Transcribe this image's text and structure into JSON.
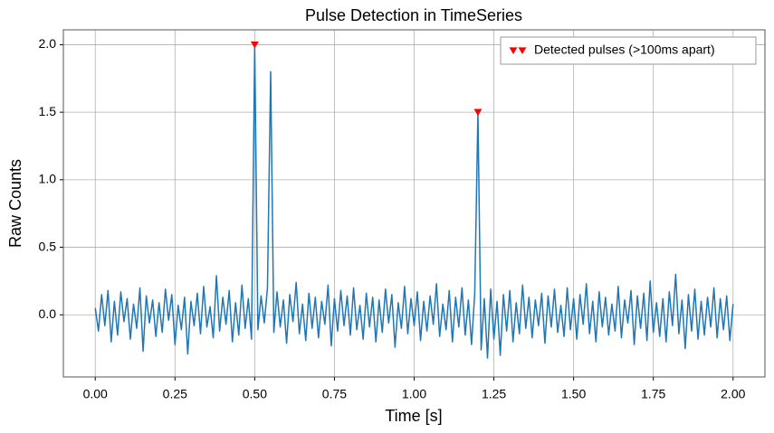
{
  "chart_data": {
    "type": "line",
    "title": "Pulse Detection in TimeSeries",
    "xlabel": "Time [s]",
    "ylabel": "Raw Counts",
    "xlim": [
      -0.1,
      2.1
    ],
    "ylim": [
      -0.46,
      2.11
    ],
    "grid": true,
    "legend": "upper right",
    "xticks": [
      {
        "value": 0,
        "label": "0.00"
      },
      0.25,
      {
        "value": 0.5,
        "label": "0.50"
      },
      0.75,
      {
        "value": 1,
        "label": "1.00"
      },
      1.25,
      {
        "value": 1.5,
        "label": "1.50"
      },
      1.75,
      {
        "value": 2,
        "label": "2.00"
      }
    ],
    "yticks": [
      {
        "value": 0,
        "label": "0.0"
      },
      0.5,
      {
        "value": 1,
        "label": "1.0"
      },
      1.5,
      {
        "value": 2,
        "label": "2.0"
      }
    ],
    "x": [
      0,
      0.01,
      0.02,
      0.03,
      0.04,
      0.05,
      0.06,
      0.07,
      0.08,
      0.09,
      0.1,
      0.11,
      0.12,
      0.13,
      0.14,
      0.15,
      0.16,
      0.17,
      0.18,
      0.19,
      0.2,
      0.21,
      0.22,
      0.23,
      0.24,
      0.25,
      0.26,
      0.27,
      0.28,
      0.29,
      0.3,
      0.31,
      0.32,
      0.33,
      0.34,
      0.35,
      0.36,
      0.37,
      0.38,
      0.39,
      0.4,
      0.41,
      0.42,
      0.43,
      0.44,
      0.45,
      0.46,
      0.47,
      0.48,
      0.49,
      0.5,
      0.51,
      0.52,
      0.53,
      0.54,
      0.55,
      0.56,
      0.57,
      0.58,
      0.59,
      0.6,
      0.61,
      0.62,
      0.63,
      0.64,
      0.65,
      0.66,
      0.67,
      0.68,
      0.69,
      0.7,
      0.71,
      0.72,
      0.73,
      0.74,
      0.75,
      0.76,
      0.77,
      0.78,
      0.79,
      0.8,
      0.81,
      0.82,
      0.83,
      0.84,
      0.85,
      0.86,
      0.87,
      0.88,
      0.89,
      0.9,
      0.91,
      0.92,
      0.93,
      0.94,
      0.95,
      0.96,
      0.97,
      0.98,
      0.99,
      1,
      1.01,
      1.02,
      1.03,
      1.04,
      1.05,
      1.06,
      1.07,
      1.08,
      1.09,
      1.1,
      1.11,
      1.12,
      1.13,
      1.14,
      1.15,
      1.16,
      1.17,
      1.18,
      1.19,
      1.2,
      1.21,
      1.22,
      1.23,
      1.24,
      1.25,
      1.26,
      1.27,
      1.28,
      1.29,
      1.3,
      1.31,
      1.32,
      1.33,
      1.34,
      1.35,
      1.36,
      1.37,
      1.38,
      1.39,
      1.4,
      1.41,
      1.42,
      1.43,
      1.44,
      1.45,
      1.46,
      1.47,
      1.48,
      1.49,
      1.5,
      1.51,
      1.52,
      1.53,
      1.54,
      1.55,
      1.56,
      1.57,
      1.58,
      1.59,
      1.6,
      1.61,
      1.62,
      1.63,
      1.64,
      1.65,
      1.66,
      1.67,
      1.68,
      1.69,
      1.7,
      1.71,
      1.72,
      1.73,
      1.74,
      1.75,
      1.76,
      1.77,
      1.78,
      1.79,
      1.8,
      1.81,
      1.82,
      1.83,
      1.84,
      1.85,
      1.86,
      1.87,
      1.88,
      1.89,
      1.9,
      1.91,
      1.92,
      1.93,
      1.94,
      1.95,
      1.96,
      1.97,
      1.98,
      1.99,
      2
    ],
    "series": [
      {
        "type": "line",
        "color": "#1f77b4",
        "values": [
          0.05,
          -0.12,
          0.15,
          -0.08,
          0.18,
          -0.2,
          0.1,
          -0.15,
          0.17,
          -0.05,
          0.12,
          -0.18,
          0.08,
          -0.1,
          0.2,
          -0.27,
          0.14,
          -0.06,
          0.11,
          -0.16,
          0.09,
          -0.13,
          0.19,
          -0.04,
          0.15,
          -0.22,
          0.07,
          -0.11,
          0.13,
          -0.29,
          0.1,
          -0.08,
          0.16,
          -0.14,
          0.21,
          -0.09,
          0.06,
          -0.17,
          0.29,
          -0.12,
          0.13,
          -0.07,
          0.18,
          -0.2,
          0.09,
          -0.15,
          0.22,
          -0.1,
          0.12,
          -0.18,
          2.0,
          -0.11,
          0.14,
          -0.06,
          0.2,
          1.8,
          -0.13,
          0.17,
          -0.09,
          0.11,
          -0.21,
          0.15,
          -0.05,
          0.24,
          -0.14,
          0.08,
          -0.19,
          0.16,
          -0.1,
          0.13,
          -0.17,
          0.1,
          -0.07,
          0.22,
          -0.23,
          0.12,
          -0.12,
          0.18,
          -0.08,
          0.14,
          -0.15,
          0.2,
          -0.11,
          0.07,
          -0.18,
          0.16,
          -0.09,
          0.13,
          -0.2,
          0.11,
          -0.13,
          0.19,
          -0.06,
          0.15,
          -0.24,
          0.09,
          -0.1,
          0.21,
          -0.14,
          0.12,
          -0.08,
          0.17,
          -0.19,
          0.1,
          -0.12,
          0.14,
          -0.07,
          0.23,
          -0.16,
          0.08,
          -0.11,
          0.18,
          -0.2,
          0.13,
          -0.09,
          0.2,
          -0.15,
          0.11,
          -0.22,
          0.16,
          1.5,
          -0.26,
          0.12,
          -0.32,
          0.19,
          -0.18,
          0.1,
          -0.3,
          0.15,
          -0.12,
          0.18,
          -0.2,
          0.09,
          -0.14,
          0.22,
          -0.1,
          0.13,
          -0.17,
          0.11,
          -0.08,
          0.16,
          -0.21,
          0.14,
          -0.09,
          0.19,
          -0.13,
          0.07,
          -0.16,
          0.2,
          -0.11,
          0.12,
          -0.18,
          0.15,
          -0.07,
          0.23,
          -0.14,
          0.1,
          -0.2,
          0.17,
          -0.09,
          0.13,
          -0.15,
          0.08,
          -0.12,
          0.21,
          -0.17,
          0.11,
          -0.06,
          0.18,
          -0.22,
          0.14,
          -0.1,
          0.16,
          -0.19,
          0.25,
          -0.13,
          0.09,
          -0.16,
          0.12,
          -0.2,
          0.17,
          -0.08,
          0.3,
          -0.14,
          0.11,
          -0.25,
          0.15,
          -0.12,
          0.19,
          -0.18,
          0.1,
          -0.15,
          0.13,
          -0.09,
          0.2,
          -0.17,
          0.12,
          -0.11,
          0.14,
          -0.19,
          0.08
        ]
      },
      {
        "type": "scatter",
        "name": "Detected pulses (>100ms apart)",
        "color": "#ff0000",
        "x": [
          0.5,
          1.2
        ],
        "values": [
          2.0,
          1.5
        ]
      }
    ]
  }
}
